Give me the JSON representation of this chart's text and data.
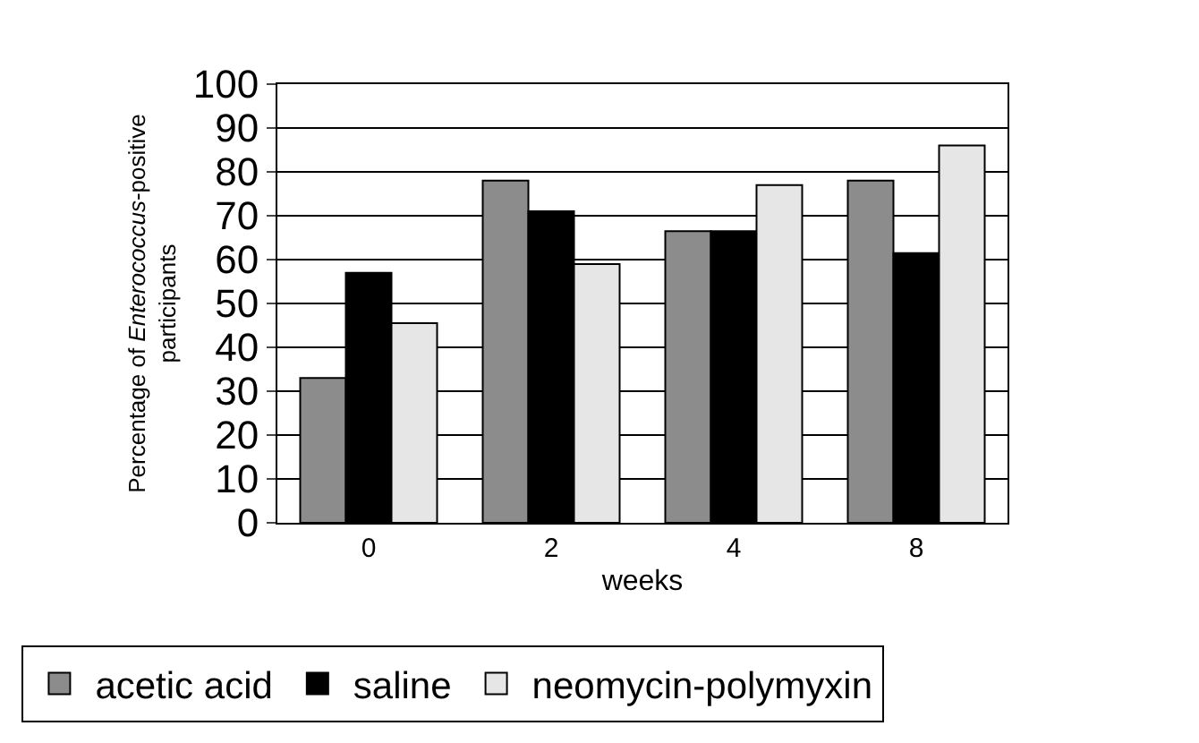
{
  "chart_data": {
    "type": "bar",
    "xlabel": "weeks",
    "ylabel": "Percentage of Enterococcus-positive participants",
    "categories": [
      "0",
      "2",
      "4",
      "8"
    ],
    "series": [
      {
        "name": "acetic acid",
        "color": "#8c8c8c",
        "values": [
          33,
          78,
          66.5,
          78
        ]
      },
      {
        "name": "saline",
        "color": "#000000",
        "values": [
          57,
          71,
          66.5,
          61.5
        ]
      },
      {
        "name": "neomycin-polymyxin",
        "color": "#e6e6e6",
        "values": [
          45.5,
          59,
          77,
          86
        ]
      }
    ],
    "ylim": [
      0,
      100
    ],
    "yticks": [
      0,
      10,
      20,
      30,
      40,
      50,
      60,
      70,
      80,
      90,
      100
    ],
    "grid": "y",
    "legend": "bottom"
  }
}
